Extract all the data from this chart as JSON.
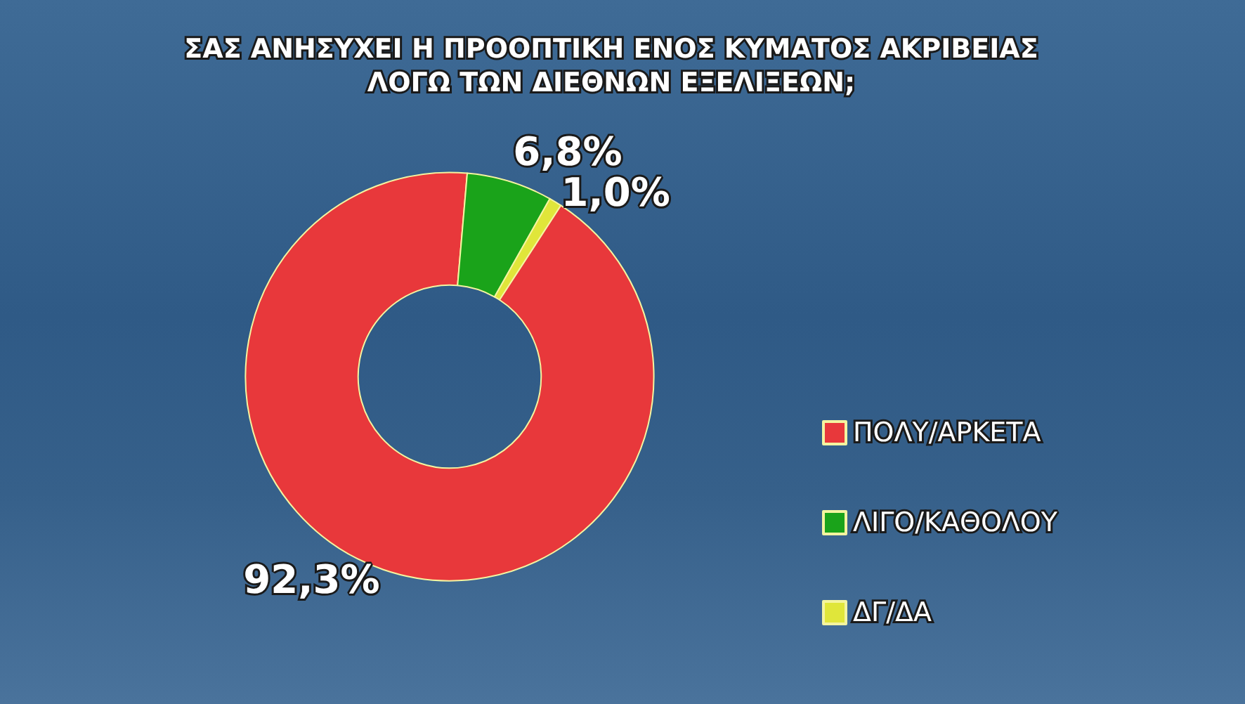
{
  "chart_data": {
    "type": "donut",
    "title": "ΣΑΣ ΑΝΗΣΥΧΕΙ Η ΠΡΟΟΠΤΙΚΗ ΕΝΟΣ ΚΥΜΑΤΟΣ ΑΚΡΙΒΕΙΑΣ\nΛΟΓΩ ΤΩΝ ΔΙΕΘΝΩΝ ΕΞΕΛΙΞΕΩΝ;",
    "categories": [
      "ΠΟΛΥ/ΑΡΚΕΤΑ",
      "ΛΙΓΟ/ΚΑΘΟΛΟΥ",
      "ΔΓ/ΔΑ"
    ],
    "values": [
      92.3,
      6.8,
      1.0
    ],
    "colors": [
      "#e8383b",
      "#1aa31a",
      "#e0e63a"
    ],
    "value_labels": [
      "92,3%",
      "6,8%",
      "1,0%"
    ],
    "legend": "right"
  }
}
